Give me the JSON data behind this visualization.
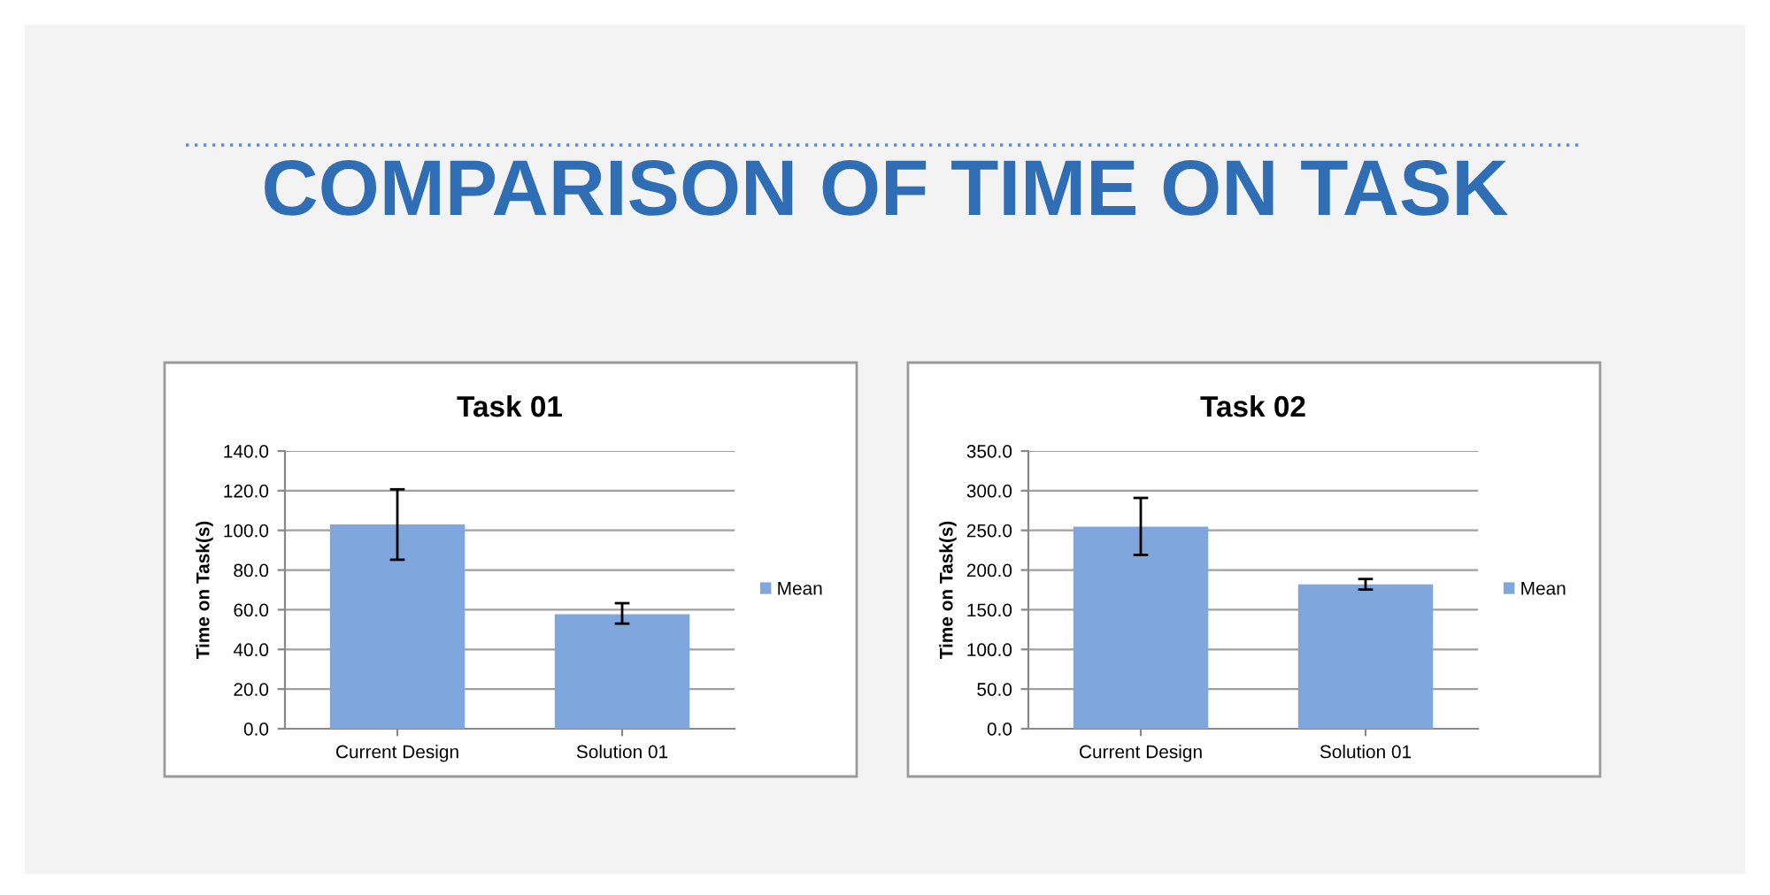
{
  "chart_data": [
    {
      "type": "other",
      "title": "COMPARISON OF TIME ON TASK"
    },
    {
      "type": "bar",
      "title": "Task 01",
      "ylabel": "Time on Task(s)",
      "categories": [
        "Current Design",
        "Solution 01"
      ],
      "series": [
        {
          "name": "Mean",
          "color": "#7fa7dd",
          "values": [
            103.0,
            57.7
          ],
          "errors": [
            [
              85.2,
              120.7
            ],
            [
              53.0,
              63.3
            ]
          ]
        }
      ],
      "ylim": [
        0,
        140
      ],
      "yticks": [
        {
          "value": 0,
          "label": "0.0"
        },
        {
          "value": 20,
          "label": "20.0"
        },
        {
          "value": 40,
          "label": "40.0"
        },
        {
          "value": 60,
          "label": "60.0"
        },
        {
          "value": 80,
          "label": "80.0"
        },
        {
          "value": 100,
          "label": "100.0"
        },
        {
          "value": 120,
          "label": "120.0"
        },
        {
          "value": 140,
          "label": "140.0"
        }
      ],
      "grid": "y",
      "legend": "right"
    },
    {
      "type": "bar",
      "title": "Task 02",
      "ylabel": "Time on Task(s)",
      "categories": [
        "Current Design",
        "Solution 01"
      ],
      "series": [
        {
          "name": "Mean",
          "color": "#7fa7dd",
          "values": [
            254.6,
            182.0
          ],
          "errors": [
            [
              219.1,
              290.9
            ],
            [
              175.4,
              188.7
            ]
          ]
        }
      ],
      "ylim": [
        0,
        350
      ],
      "yticks": [
        {
          "value": 0,
          "label": "0.0"
        },
        {
          "value": 50,
          "label": "50.0"
        },
        {
          "value": 100,
          "label": "100.0"
        },
        {
          "value": 150,
          "label": "150.0"
        },
        {
          "value": 200,
          "label": "200.0"
        },
        {
          "value": 250,
          "label": "250.0"
        },
        {
          "value": 300,
          "label": "300.0"
        },
        {
          "value": 350,
          "label": "350.0"
        }
      ],
      "grid": "y",
      "legend": "right"
    }
  ]
}
